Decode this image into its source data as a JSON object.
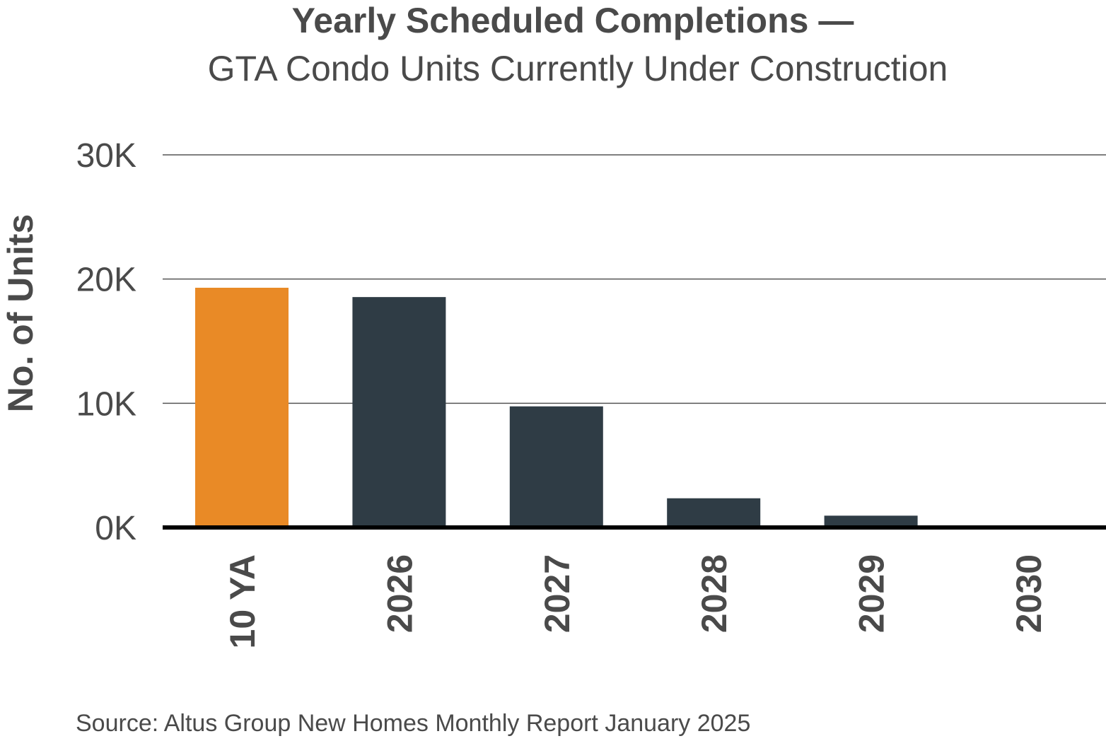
{
  "chart_data": {
    "type": "bar",
    "title": "Yearly Scheduled Completions —",
    "subtitle": "GTA Condo Units Currently Under Construction",
    "xlabel": "",
    "ylabel": "No. of Units",
    "categories": [
      "10 YA",
      "2026",
      "2027",
      "2028",
      "2029",
      "2030"
    ],
    "values": [
      19300,
      18550,
      9750,
      2350,
      950,
      0
    ],
    "highlight_category": "10 YA",
    "ylim": [
      0,
      30000
    ],
    "yticks": [
      0,
      10000,
      20000,
      30000
    ],
    "ytick_labels": [
      "0K",
      "10K",
      "20K",
      "30K"
    ],
    "grid": true,
    "legend": "none",
    "colors": {
      "highlight": "#e98a26",
      "bar": "#2f3c45",
      "grid": "#555555",
      "axis": "#000000",
      "text": "#4a4a4a"
    }
  },
  "source": "Source: Altus Group New Homes Monthly Report January 2025"
}
